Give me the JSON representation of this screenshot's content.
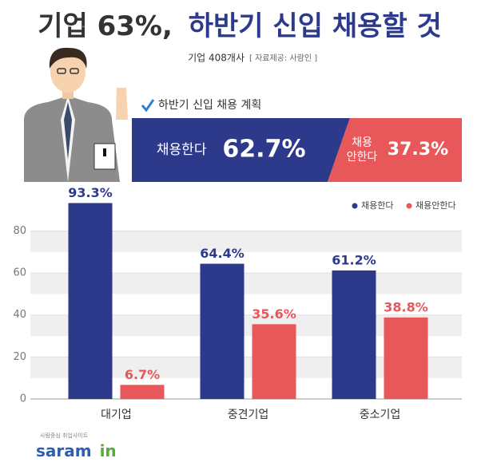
{
  "title": [
    "기업 63%,",
    "하반기 신입 채용할 것"
  ],
  "subtitle": "기업 408개사",
  "source": "[ 자료제공: 사람인 ]",
  "brand": {
    "tagline": "사람중심 취업사이트",
    "name": [
      "saram",
      "in"
    ]
  },
  "chart_data": [
    {
      "type": "stacked_bar",
      "title": "하반기 신입 채용 계획",
      "series": [
        {
          "name": "채용한다",
          "color": "#2d3a8c",
          "values": [
            62.7
          ],
          "value_labels": [
            "62.7%"
          ]
        },
        {
          "name": "채용 안한다",
          "color": "#e8575a",
          "values": [
            37.3
          ],
          "value_labels": [
            "37.3%"
          ]
        }
      ]
    },
    {
      "type": "bar",
      "categories": [
        "대기업",
        "중견기업",
        "중소기업"
      ],
      "series": [
        {
          "name": "채용한다",
          "color": "#2d3a8c",
          "values": [
            93.3,
            64.4,
            61.2
          ],
          "value_labels": [
            "93.3%",
            "64.4%",
            "61.2%"
          ]
        },
        {
          "name": "채용안한다",
          "color": "#e8575a",
          "values": [
            6.7,
            35.6,
            38.8
          ],
          "value_labels": [
            "6.7%",
            "35.6%",
            "38.8%"
          ]
        }
      ],
      "ylim": [
        0,
        95
      ],
      "yticks": [
        0,
        20,
        40,
        60,
        80
      ],
      "grid": true,
      "legend": "top-right"
    }
  ]
}
